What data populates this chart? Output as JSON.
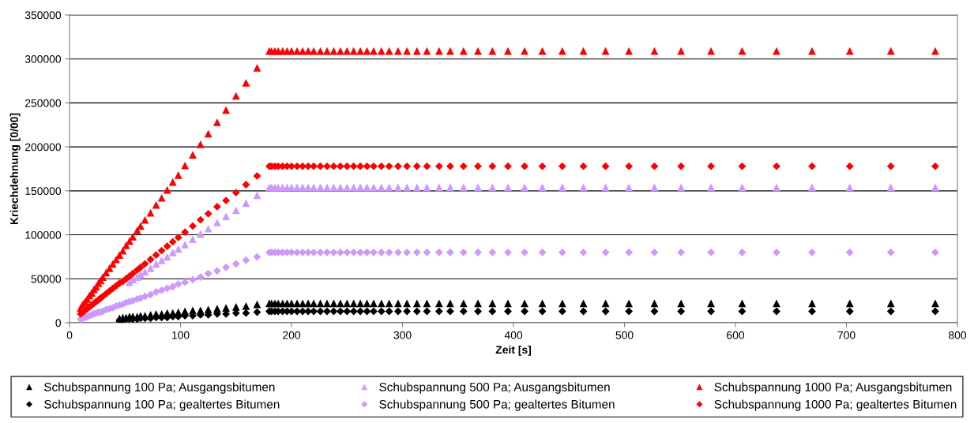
{
  "chart_data": {
    "type": "scatter",
    "xlabel": "Zeit [s]",
    "ylabel": "Kriechdehnung [0/00]",
    "xlim": [
      0,
      800
    ],
    "xticks": [
      0,
      100,
      200,
      300,
      400,
      500,
      600,
      700,
      800
    ],
    "ylim": [
      0,
      350000
    ],
    "yticks": [
      0,
      50000,
      100000,
      150000,
      200000,
      250000,
      300000,
      350000
    ],
    "grid": "y",
    "legend": "bottom",
    "series": [
      {
        "name": "Schubspannung 100 Pa; Ausgangsbitumen",
        "color": "#000000",
        "marker": "triangle",
        "x": [
          45,
          48,
          51,
          54,
          57,
          61,
          64,
          68,
          73,
          78,
          83,
          88,
          93,
          98,
          104,
          111,
          118,
          125,
          133,
          141,
          150,
          159,
          169,
          180,
          182,
          185,
          188,
          192,
          196,
          200,
          205,
          210,
          215,
          220,
          226,
          232,
          238,
          244,
          250,
          256,
          262,
          268,
          274,
          281,
          288,
          296,
          304,
          313,
          322,
          333,
          343,
          355,
          368,
          381,
          395,
          410,
          426,
          444,
          463,
          483,
          504,
          527,
          551,
          578,
          606,
          637,
          669,
          703,
          740,
          780
        ],
        "values": [
          5000,
          6000,
          6000,
          7000,
          7000,
          7000,
          8000,
          8000,
          9000,
          10000,
          10000,
          11000,
          11000,
          12000,
          13000,
          14000,
          14000,
          15000,
          16000,
          17000,
          18000,
          19000,
          21000,
          22000,
          22000,
          22000,
          22000,
          22000,
          22000,
          22000,
          22000,
          22000,
          22000,
          22000,
          22000,
          22000,
          22000,
          22000,
          22000,
          22000,
          22000,
          22000,
          22000,
          22000,
          22000,
          22000,
          22000,
          22000,
          22000,
          22000,
          22000,
          22000,
          22000,
          22000,
          22000,
          22000,
          22000,
          22000,
          22000,
          22000,
          22000,
          22000,
          22000,
          22000,
          22000,
          22000,
          22000,
          22000,
          22000,
          22000
        ]
      },
      {
        "name": "Schubspannung 100 Pa; gealtertes Bitumen",
        "color": "#000000",
        "marker": "diamond",
        "x": [
          45,
          48,
          51,
          54,
          57,
          61,
          64,
          68,
          73,
          78,
          83,
          88,
          93,
          98,
          104,
          111,
          118,
          125,
          133,
          141,
          150,
          159,
          169,
          180,
          182,
          185,
          188,
          192,
          196,
          200,
          205,
          210,
          215,
          220,
          226,
          232,
          238,
          244,
          250,
          256,
          262,
          268,
          274,
          281,
          288,
          296,
          304,
          313,
          322,
          333,
          343,
          355,
          368,
          381,
          395,
          410,
          426,
          444,
          463,
          483,
          504,
          527,
          551,
          578,
          606,
          637,
          669,
          703,
          740,
          780
        ],
        "values": [
          3000,
          3000,
          4000,
          4000,
          4000,
          4000,
          5000,
          5000,
          5000,
          6000,
          6000,
          6000,
          7000,
          7000,
          8000,
          8000,
          9000,
          9000,
          10000,
          10000,
          11000,
          11000,
          12000,
          13000,
          13000,
          13000,
          13000,
          13000,
          13000,
          13000,
          13000,
          13000,
          13000,
          13000,
          13000,
          13000,
          13000,
          13000,
          13000,
          13000,
          13000,
          13000,
          13000,
          13000,
          13000,
          13000,
          13000,
          13000,
          13000,
          13000,
          13000,
          13000,
          13000,
          13000,
          13000,
          13000,
          13000,
          13000,
          13000,
          13000,
          13000,
          13000,
          13000,
          13000,
          13000,
          13000,
          13000,
          13000,
          13000,
          13000
        ]
      },
      {
        "name": "Schubspannung 500 Pa; Ausgangsbitumen",
        "color": "#cc99ff",
        "marker": "triangle",
        "x": [
          54,
          57,
          61,
          64,
          68,
          73,
          78,
          83,
          88,
          93,
          98,
          104,
          111,
          118,
          125,
          133,
          141,
          150,
          159,
          169,
          180,
          182,
          185,
          188,
          192,
          196,
          200,
          205,
          210,
          215,
          220,
          226,
          232,
          238,
          244,
          250,
          256,
          262,
          268,
          274,
          281,
          288,
          296,
          304,
          313,
          322,
          333,
          343,
          355,
          368,
          381,
          395,
          410,
          426,
          444,
          463,
          483,
          504,
          527,
          551,
          578,
          606,
          637,
          669,
          703,
          740,
          780
        ],
        "values": [
          46000,
          49000,
          52000,
          55000,
          58000,
          62000,
          67000,
          71000,
          75000,
          80000,
          84000,
          89000,
          95000,
          101000,
          107000,
          114000,
          121000,
          128000,
          136000,
          145000,
          154000,
          154000,
          154000,
          154000,
          154000,
          154000,
          154000,
          154000,
          154000,
          154000,
          154000,
          154000,
          154000,
          154000,
          154000,
          154000,
          154000,
          154000,
          154000,
          154000,
          154000,
          154000,
          154000,
          154000,
          154000,
          154000,
          154000,
          154000,
          154000,
          154000,
          154000,
          154000,
          154000,
          154000,
          154000,
          154000,
          154000,
          154000,
          154000,
          154000,
          154000,
          154000,
          154000,
          154000,
          154000,
          154000,
          154000
        ]
      },
      {
        "name": "Schubspannung 500 Pa; gealtertes Bitumen",
        "color": "#cc99ff",
        "marker": "diamond",
        "x": [
          10,
          12,
          14,
          16,
          18,
          20,
          22,
          24,
          26,
          28,
          30,
          33,
          36,
          39,
          42,
          45,
          48,
          51,
          54,
          57,
          61,
          64,
          68,
          73,
          78,
          83,
          88,
          93,
          98,
          104,
          111,
          118,
          125,
          133,
          141,
          150,
          159,
          169,
          180,
          182,
          185,
          188,
          192,
          196,
          200,
          205,
          210,
          215,
          220,
          226,
          232,
          238,
          244,
          250,
          256,
          262,
          268,
          274,
          281,
          288,
          296,
          304,
          313,
          322,
          333,
          343,
          355,
          368,
          381,
          395,
          410,
          426,
          444,
          463,
          483,
          504,
          527,
          551,
          578,
          606,
          637,
          669,
          703,
          740,
          780
        ],
        "values": [
          4000,
          5000,
          6000,
          7000,
          8000,
          9000,
          10000,
          11000,
          12000,
          12000,
          13000,
          15000,
          16000,
          17000,
          19000,
          20000,
          21000,
          23000,
          24000,
          25000,
          27000,
          28000,
          30000,
          32000,
          35000,
          37000,
          39000,
          41000,
          44000,
          46000,
          49000,
          52000,
          56000,
          59000,
          63000,
          67000,
          71000,
          75000,
          80000,
          80000,
          80000,
          80000,
          80000,
          80000,
          80000,
          80000,
          80000,
          80000,
          80000,
          80000,
          80000,
          80000,
          80000,
          80000,
          80000,
          80000,
          80000,
          80000,
          80000,
          80000,
          80000,
          80000,
          80000,
          80000,
          80000,
          80000,
          80000,
          80000,
          80000,
          80000,
          80000,
          80000,
          80000,
          80000,
          80000,
          80000,
          80000,
          80000,
          80000,
          80000,
          80000,
          80000,
          80000,
          80000,
          80000
        ]
      },
      {
        "name": "Schubspannung 1000 Pa; Ausgangsbitumen",
        "color": "#ff0000",
        "marker": "triangle",
        "x": [
          10,
          12,
          14,
          16,
          18,
          20,
          22,
          24,
          26,
          28,
          30,
          33,
          36,
          39,
          42,
          45,
          48,
          51,
          54,
          57,
          61,
          64,
          68,
          73,
          78,
          83,
          88,
          93,
          98,
          104,
          111,
          118,
          125,
          133,
          141,
          150,
          159,
          169,
          180,
          182,
          185,
          188,
          192,
          196,
          200,
          205,
          210,
          215,
          220,
          226,
          232,
          238,
          244,
          250,
          256,
          262,
          268,
          274,
          281,
          288,
          296,
          304,
          313,
          322,
          333,
          343,
          355,
          368,
          381,
          395,
          410,
          426,
          444,
          463,
          483,
          504,
          527,
          551,
          578,
          606,
          637,
          669,
          703,
          740,
          780
        ],
        "values": [
          17000,
          21000,
          24000,
          27000,
          31000,
          34000,
          38000,
          41000,
          45000,
          48000,
          52000,
          57000,
          62000,
          67000,
          72000,
          77000,
          82000,
          88000,
          93000,
          98000,
          105000,
          110000,
          117000,
          125000,
          134000,
          142000,
          151000,
          160000,
          168000,
          179000,
          191000,
          203000,
          215000,
          228000,
          242000,
          258000,
          273000,
          290000,
          309000,
          309000,
          309000,
          309000,
          309000,
          309000,
          309000,
          309000,
          309000,
          309000,
          309000,
          309000,
          309000,
          309000,
          309000,
          309000,
          309000,
          309000,
          309000,
          309000,
          309000,
          309000,
          309000,
          309000,
          309000,
          309000,
          309000,
          309000,
          309000,
          309000,
          309000,
          309000,
          309000,
          309000,
          309000,
          309000,
          309000,
          309000,
          309000,
          309000,
          309000,
          309000,
          309000,
          309000,
          309000,
          309000,
          309000
        ]
      },
      {
        "name": "Schubspannung 1000 Pa; gealtertes Bitumen",
        "color": "#ff0000",
        "marker": "diamond",
        "x": [
          10,
          12,
          14,
          16,
          18,
          20,
          22,
          24,
          26,
          28,
          30,
          33,
          36,
          39,
          42,
          45,
          48,
          51,
          54,
          57,
          61,
          64,
          68,
          73,
          78,
          83,
          88,
          93,
          98,
          104,
          111,
          118,
          125,
          133,
          141,
          150,
          159,
          169,
          180,
          182,
          185,
          188,
          192,
          196,
          200,
          205,
          210,
          215,
          220,
          226,
          232,
          238,
          244,
          250,
          256,
          262,
          268,
          274,
          281,
          288,
          296,
          304,
          313,
          322,
          333,
          343,
          355,
          368,
          381,
          395,
          410,
          426,
          444,
          463,
          483,
          504,
          527,
          551,
          578,
          606,
          637,
          669,
          703,
          740,
          780
        ],
        "values": [
          10000,
          12000,
          14000,
          16000,
          18000,
          20000,
          22000,
          24000,
          26000,
          28000,
          30000,
          33000,
          36000,
          39000,
          42000,
          45000,
          47000,
          50000,
          53000,
          56000,
          60000,
          63000,
          67000,
          72000,
          77000,
          82000,
          87000,
          92000,
          97000,
          103000,
          110000,
          117000,
          124000,
          132000,
          139000,
          148000,
          157000,
          167000,
          178000,
          178000,
          178000,
          178000,
          178000,
          178000,
          178000,
          178000,
          178000,
          178000,
          178000,
          178000,
          178000,
          178000,
          178000,
          178000,
          178000,
          178000,
          178000,
          178000,
          178000,
          178000,
          178000,
          178000,
          178000,
          178000,
          178000,
          178000,
          178000,
          178000,
          178000,
          178000,
          178000,
          178000,
          178000,
          178000,
          178000,
          178000,
          178000,
          178000,
          178000,
          178000,
          178000,
          178000,
          178000,
          178000,
          178000
        ]
      }
    ]
  }
}
